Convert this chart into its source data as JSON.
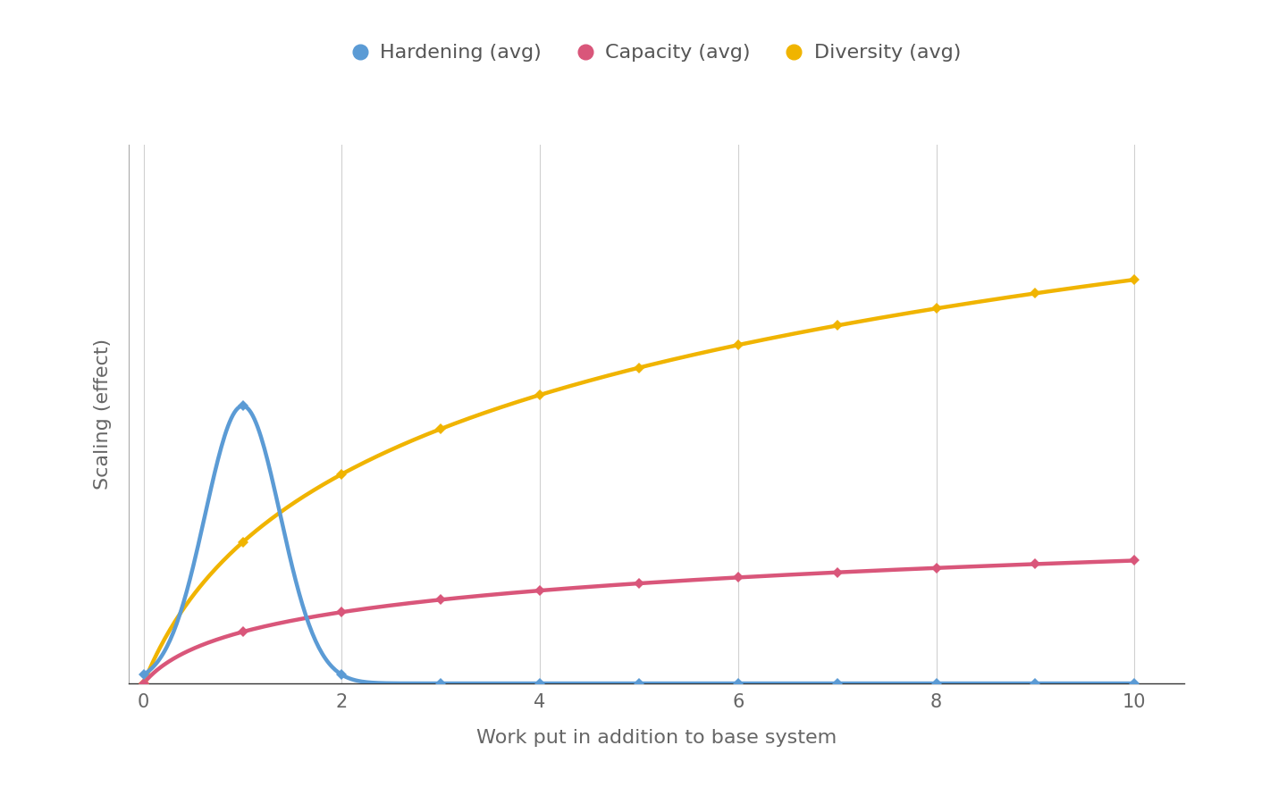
{
  "title": "",
  "xlabel": "Work put in addition to base system",
  "ylabel": "Scaling (effect)",
  "background_color": "#ffffff",
  "legend_entries": [
    "Hardening (avg)",
    "Capacity (avg)",
    "Diversity (avg)"
  ],
  "colors": {
    "hardening": "#5b9bd5",
    "capacity": "#d9567a",
    "diversity": "#f0b400"
  },
  "x_ticks": [
    0,
    2,
    4,
    6,
    8,
    10
  ],
  "grid_color": "#d0d0d0",
  "marker_x": [
    0,
    1,
    2,
    3,
    4,
    5,
    6,
    7,
    8,
    9,
    10
  ]
}
